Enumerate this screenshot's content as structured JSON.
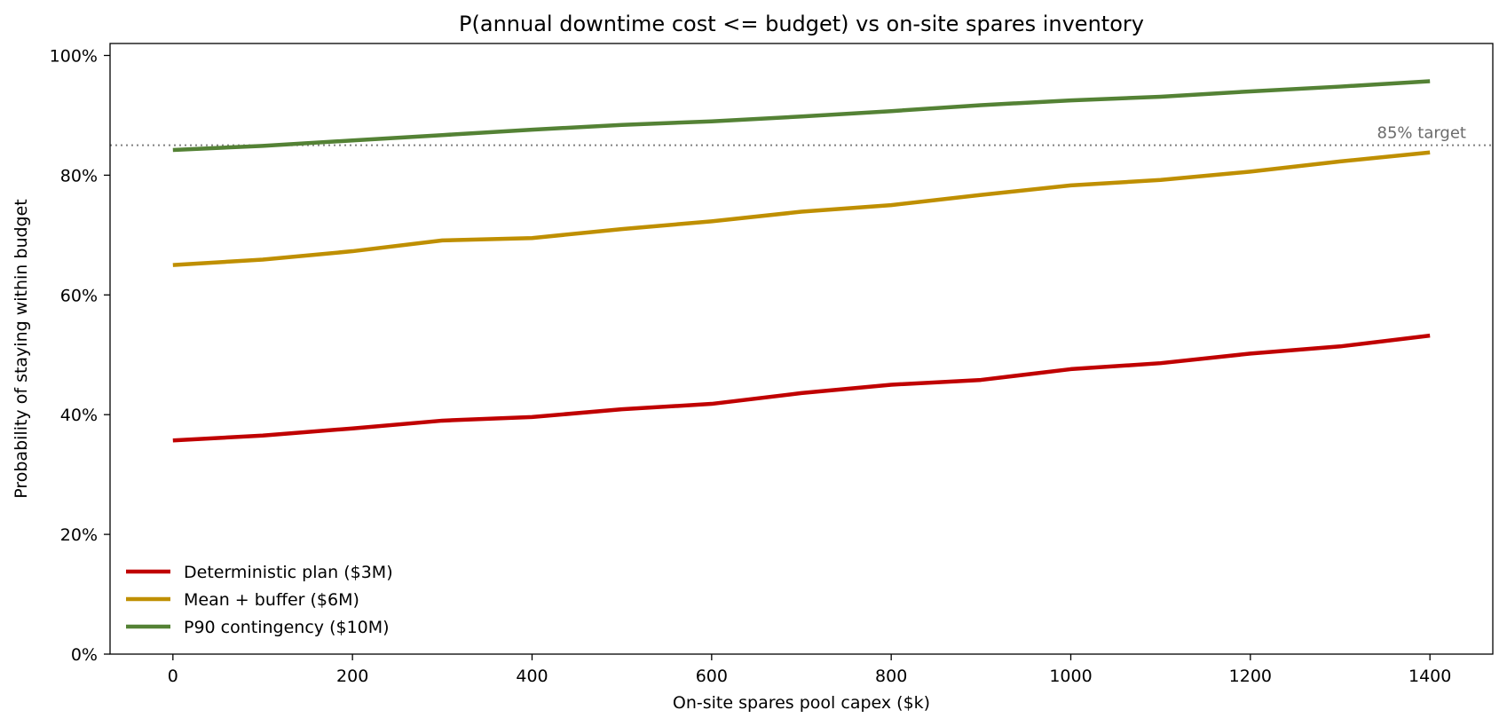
{
  "chart_data": {
    "type": "line",
    "title": "P(annual downtime cost <= budget) vs on-site spares inventory",
    "xlabel": "On-site spares pool capex  ($k)",
    "ylabel": "Probability of staying within budget",
    "x": [
      0,
      100,
      200,
      300,
      400,
      500,
      600,
      700,
      800,
      900,
      1000,
      1100,
      1200,
      1300,
      1400
    ],
    "xlim": [
      -70,
      1470
    ],
    "ylim": [
      0,
      1.02
    ],
    "xticks": [
      0,
      200,
      400,
      600,
      800,
      1000,
      1200,
      1400
    ],
    "xtick_labels": [
      "0",
      "200",
      "400",
      "600",
      "800",
      "1000",
      "1200",
      "1400"
    ],
    "yticks": [
      0,
      0.2,
      0.4,
      0.6,
      0.8,
      1.0
    ],
    "ytick_labels": [
      "0%",
      "20%",
      "40%",
      "60%",
      "80%",
      "100%"
    ],
    "grid": false,
    "legend_position": "bottom-left",
    "series": [
      {
        "name": "Deterministic plan ($3M)",
        "color": "#c00000",
        "values": [
          0.357,
          0.365,
          0.377,
          0.39,
          0.396,
          0.409,
          0.418,
          0.436,
          0.45,
          0.458,
          0.476,
          0.486,
          0.502,
          0.514,
          0.532
        ]
      },
      {
        "name": "Mean + buffer ($6M)",
        "color": "#bf8f00",
        "values": [
          0.65,
          0.659,
          0.673,
          0.691,
          0.695,
          0.71,
          0.723,
          0.739,
          0.75,
          0.767,
          0.783,
          0.792,
          0.806,
          0.823,
          0.838
        ]
      },
      {
        "name": "P90 contingency ($10M)",
        "color": "#548235",
        "values": [
          0.842,
          0.849,
          0.858,
          0.867,
          0.876,
          0.884,
          0.89,
          0.898,
          0.907,
          0.917,
          0.925,
          0.931,
          0.94,
          0.948,
          0.957
        ]
      }
    ],
    "reference_line": {
      "value": 0.85,
      "label": "85% target",
      "color": "#808080"
    }
  }
}
